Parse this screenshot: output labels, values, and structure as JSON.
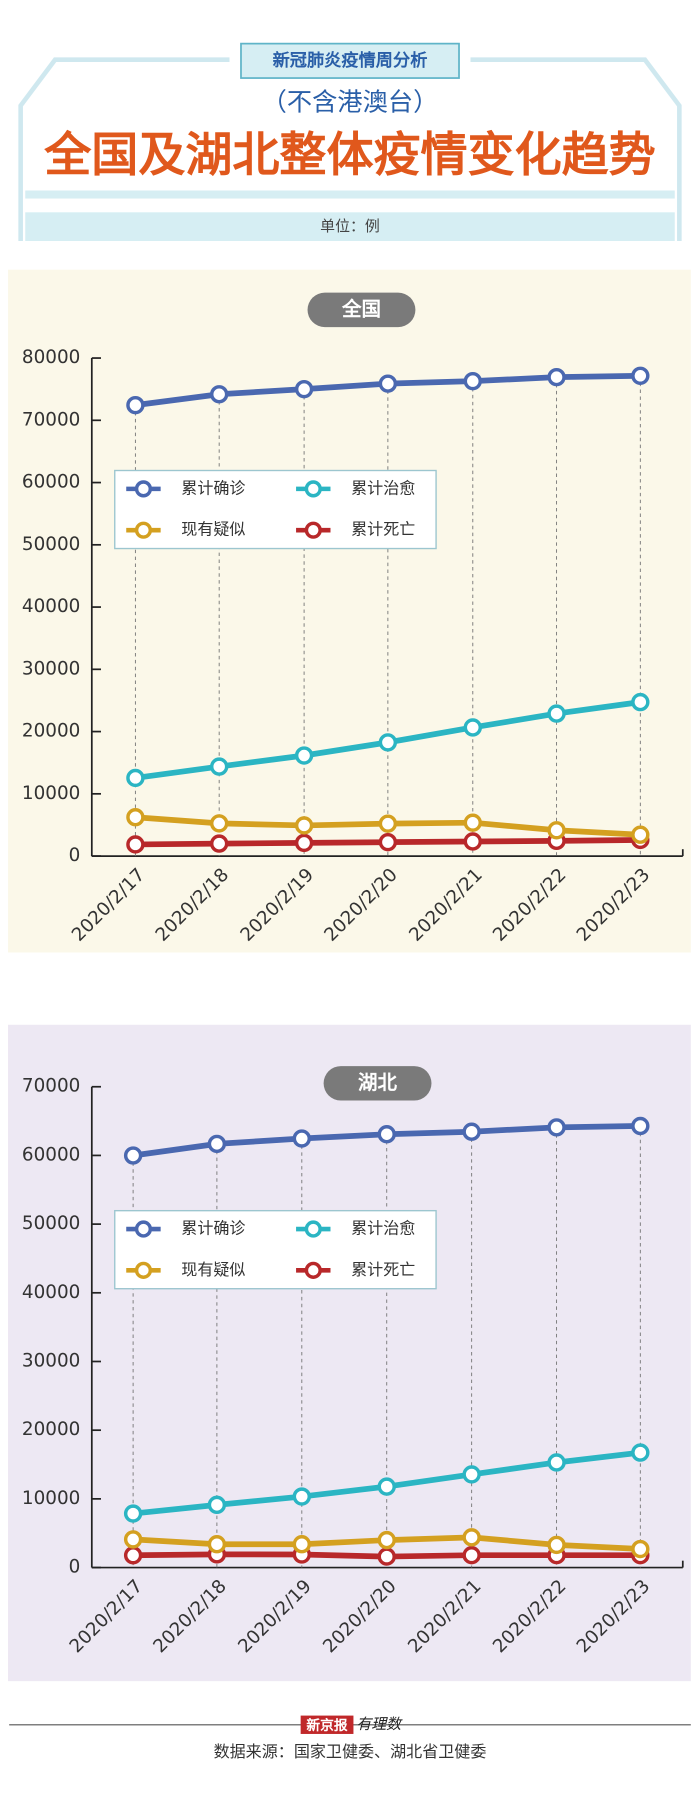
{
  "header": {
    "tag": "新冠肺炎疫情周分析",
    "subtitle": "（不含港澳台）",
    "title": "全国及湖北整体疫情变化趋势",
    "unit": "单位：例"
  },
  "chart_data": [
    {
      "type": "line",
      "title": "全国",
      "categories": [
        "2020/2/17",
        "2020/2/18",
        "2020/2/19",
        "2020/2/20",
        "2020/2/21",
        "2020/2/22",
        "2020/2/23"
      ],
      "series": [
        {
          "name": "累计确诊",
          "color": "#4a68b0",
          "values": [
            72436,
            74185,
            75002,
            75891,
            76288,
            76936,
            77150
          ]
        },
        {
          "name": "累计治愈",
          "color": "#2bb5c3",
          "values": [
            12552,
            14376,
            16155,
            18264,
            20659,
            22888,
            24734
          ]
        },
        {
          "name": "现有疑似",
          "color": "#d4a020",
          "values": [
            6242,
            5248,
            4922,
            5206,
            5365,
            4148,
            3434
          ]
        },
        {
          "name": "累计死亡",
          "color": "#b8282a",
          "values": [
            1870,
            2004,
            2118,
            2236,
            2345,
            2442,
            2592
          ]
        }
      ],
      "ylim": [
        0,
        80000
      ],
      "yticks": [
        0,
        10000,
        20000,
        30000,
        40000,
        50000,
        60000,
        70000,
        80000
      ]
    },
    {
      "type": "line",
      "title": "湖北",
      "categories": [
        "2020/2/17",
        "2020/2/18",
        "2020/2/19",
        "2020/2/20",
        "2020/2/21",
        "2020/2/22",
        "2020/2/23"
      ],
      "series": [
        {
          "name": "累计确诊",
          "color": "#4a68b0",
          "values": [
            59989,
            61682,
            62457,
            63088,
            63454,
            64084,
            64287
          ]
        },
        {
          "name": "累计治愈",
          "color": "#2bb5c3",
          "values": [
            7862,
            9128,
            10337,
            11788,
            13557,
            15299,
            16738
          ]
        },
        {
          "name": "现有疑似",
          "color": "#d4a020",
          "values": [
            4100,
            3400,
            3400,
            4000,
            4400,
            3300,
            2700
          ]
        },
        {
          "name": "累计死亡",
          "color": "#b8282a",
          "values": [
            1789,
            1921,
            1900,
            1600,
            1800,
            1800,
            1800
          ]
        }
      ],
      "ylim": [
        0,
        70000
      ],
      "yticks": [
        0,
        10000,
        20000,
        30000,
        40000,
        50000,
        60000,
        70000
      ]
    }
  ],
  "footer": {
    "brand": "新京报",
    "brand2": "有理数",
    "source": "数据来源：国家卫健委、湖北省卫健委"
  }
}
